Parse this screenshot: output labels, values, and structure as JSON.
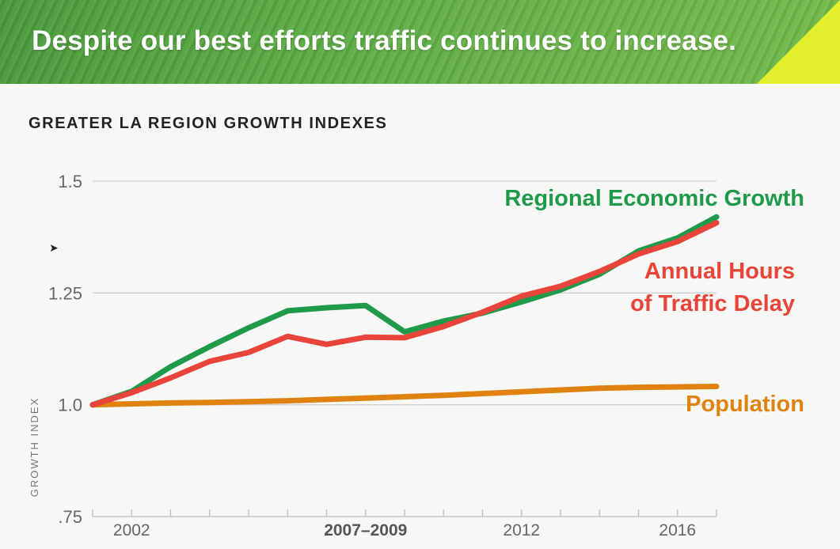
{
  "slide": {
    "title": "Despite our best efforts traffic continues to increase."
  },
  "chart_data": {
    "type": "line",
    "title": "GREATER LA REGION GROWTH INDEXES",
    "xlabel": "",
    "ylabel": "GROWTH INDEX",
    "xlim": [
      2001,
      2017
    ],
    "ylim": [
      0.75,
      1.5
    ],
    "y_ticks": [
      {
        "value": 1.5,
        "label": "1.5"
      },
      {
        "value": 1.25,
        "label": "1.25"
      },
      {
        "value": 1.0,
        "label": "1.0"
      },
      {
        "value": 0.75,
        "label": ".75"
      }
    ],
    "x_ticks": [
      {
        "value": 2002,
        "label": "2002"
      },
      {
        "value": 2008,
        "label": "2007–2009",
        "bold": true
      },
      {
        "value": 2012,
        "label": "2012"
      },
      {
        "value": 2016,
        "label": "2016"
      }
    ],
    "x": [
      2001,
      2002,
      2003,
      2004,
      2005,
      2006,
      2007,
      2008,
      2009,
      2010,
      2011,
      2012,
      2013,
      2014,
      2015,
      2016,
      2017
    ],
    "series": [
      {
        "name": "Regional Economic Growth",
        "label_lines": [
          "Regional Economic Growth"
        ],
        "color": "#1f9a4a",
        "values": [
          1.0,
          1.03,
          1.085,
          1.13,
          1.172,
          1.21,
          1.217,
          1.222,
          1.163,
          1.187,
          1.205,
          1.23,
          1.257,
          1.292,
          1.344,
          1.373,
          1.42
        ]
      },
      {
        "name": "Annual Hours of Traffic Delay",
        "label_lines": [
          "Annual Hours",
          "of Traffic Delay"
        ],
        "color": "#e8443a",
        "values": [
          1.0,
          1.027,
          1.06,
          1.097,
          1.117,
          1.153,
          1.135,
          1.151,
          1.15,
          1.175,
          1.207,
          1.243,
          1.265,
          1.298,
          1.337,
          1.365,
          1.407
        ]
      },
      {
        "name": "Population",
        "label_lines": [
          "Population"
        ],
        "color": "#e0820f",
        "values": [
          1.0,
          1.002,
          1.004,
          1.005,
          1.007,
          1.009,
          1.012,
          1.015,
          1.018,
          1.021,
          1.025,
          1.029,
          1.033,
          1.037,
          1.039,
          1.04,
          1.041
        ]
      }
    ],
    "grid": true
  }
}
